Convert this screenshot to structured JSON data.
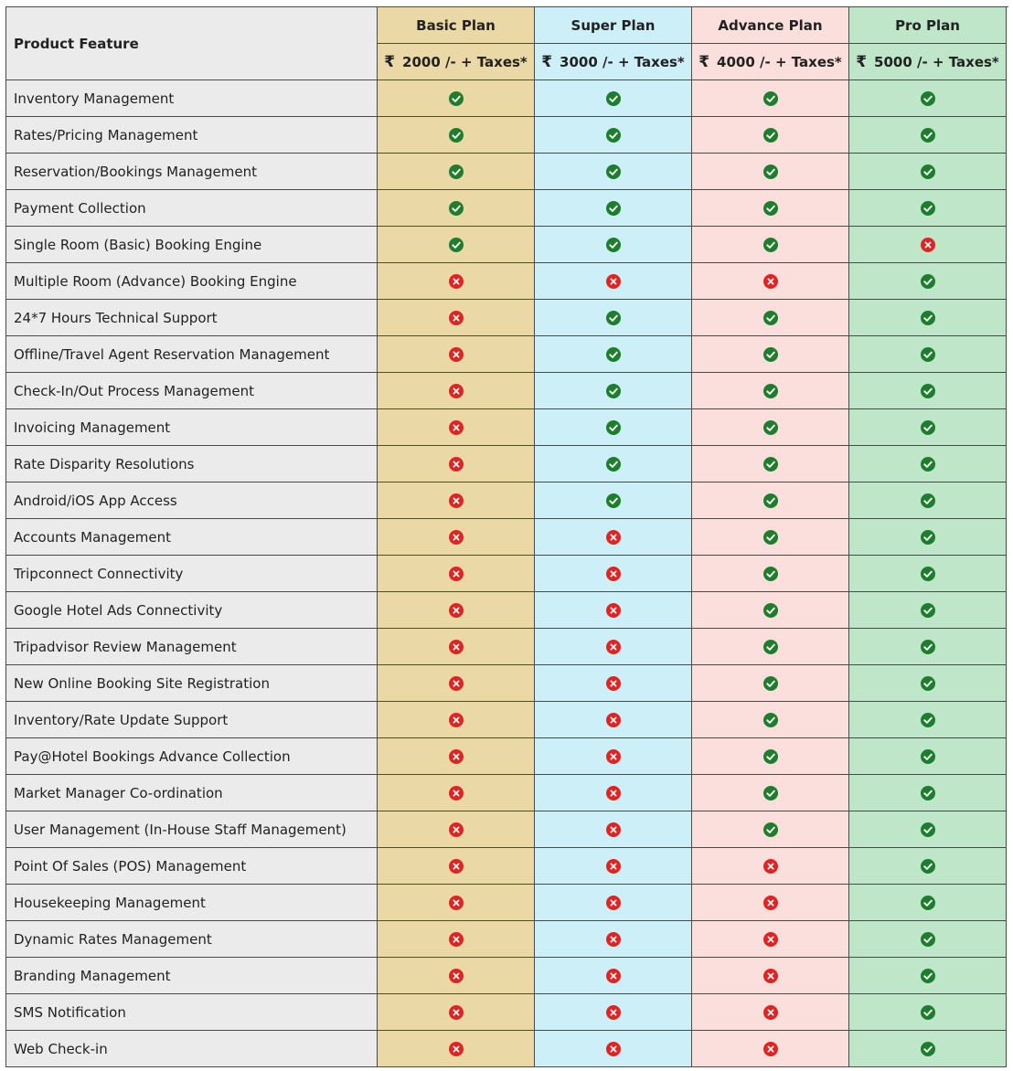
{
  "header": {
    "feature_label": "Product Feature"
  },
  "plans": [
    {
      "name": "Basic Plan",
      "price": "2000 /- + Taxes*",
      "currency": "₹",
      "color": "#ead9a6"
    },
    {
      "name": "Super Plan",
      "price": "3000 /- + Taxes*",
      "currency": "₹",
      "color": "#cdeff7"
    },
    {
      "name": "Advance Plan",
      "price": "4000 /- + Taxes*",
      "currency": "₹",
      "color": "#fadfdc"
    },
    {
      "name": "Pro Plan",
      "price": "5000 /- + Taxes*",
      "currency": "₹",
      "color": "#bfe6c9"
    }
  ],
  "icons": {
    "yes": {
      "name": "check-circle-icon",
      "color": "#1e7e2e"
    },
    "no": {
      "name": "cross-circle-icon",
      "color": "#e02424"
    }
  },
  "features": [
    {
      "label": "Inventory Management",
      "values": [
        true,
        true,
        true,
        true
      ]
    },
    {
      "label": "Rates/Pricing Management",
      "values": [
        true,
        true,
        true,
        true
      ]
    },
    {
      "label": "Reservation/Bookings Management",
      "values": [
        true,
        true,
        true,
        true
      ]
    },
    {
      "label": "Payment Collection",
      "values": [
        true,
        true,
        true,
        true
      ]
    },
    {
      "label": "Single Room (Basic) Booking Engine",
      "values": [
        true,
        true,
        true,
        false
      ]
    },
    {
      "label": "Multiple Room (Advance) Booking Engine",
      "values": [
        false,
        false,
        false,
        true
      ]
    },
    {
      "label": "24*7 Hours Technical Support",
      "values": [
        false,
        true,
        true,
        true
      ]
    },
    {
      "label": "Offline/Travel Agent Reservation Management",
      "values": [
        false,
        true,
        true,
        true
      ]
    },
    {
      "label": "Check-In/Out Process Management",
      "values": [
        false,
        true,
        true,
        true
      ]
    },
    {
      "label": "Invoicing Management",
      "values": [
        false,
        true,
        true,
        true
      ]
    },
    {
      "label": "Rate Disparity Resolutions",
      "values": [
        false,
        true,
        true,
        true
      ]
    },
    {
      "label": "Android/iOS App Access",
      "values": [
        false,
        true,
        true,
        true
      ]
    },
    {
      "label": "Accounts Management",
      "values": [
        false,
        false,
        true,
        true
      ]
    },
    {
      "label": "Tripconnect Connectivity",
      "values": [
        false,
        false,
        true,
        true
      ]
    },
    {
      "label": "Google Hotel Ads Connectivity",
      "values": [
        false,
        false,
        true,
        true
      ]
    },
    {
      "label": "Tripadvisor Review Management",
      "values": [
        false,
        false,
        true,
        true
      ]
    },
    {
      "label": "New Online Booking Site Registration",
      "values": [
        false,
        false,
        true,
        true
      ]
    },
    {
      "label": "Inventory/Rate Update Support",
      "values": [
        false,
        false,
        true,
        true
      ]
    },
    {
      "label": "Pay@Hotel Bookings Advance Collection",
      "values": [
        false,
        false,
        true,
        true
      ]
    },
    {
      "label": "Market Manager Co-ordination",
      "values": [
        false,
        false,
        true,
        true
      ]
    },
    {
      "label": "User Management (In-House Staff Management)",
      "values": [
        false,
        false,
        true,
        true
      ]
    },
    {
      "label": "Point Of Sales (POS) Management",
      "values": [
        false,
        false,
        false,
        true
      ]
    },
    {
      "label": "Housekeeping Management",
      "values": [
        false,
        false,
        false,
        true
      ]
    },
    {
      "label": "Dynamic Rates Management",
      "values": [
        false,
        false,
        false,
        true
      ]
    },
    {
      "label": "Branding Management",
      "values": [
        false,
        false,
        false,
        true
      ]
    },
    {
      "label": "SMS Notification",
      "values": [
        false,
        false,
        false,
        true
      ]
    },
    {
      "label": "Web Check-in",
      "values": [
        false,
        false,
        false,
        true
      ]
    }
  ]
}
